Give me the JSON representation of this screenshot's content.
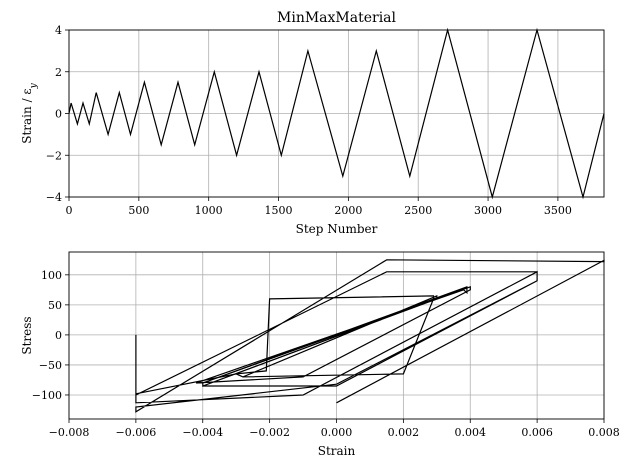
{
  "chart_data": [
    {
      "type": "line",
      "title": "MinMaxMaterial",
      "xlabel": "Step Number",
      "ylabel": "Strain / ε",
      "ylabel_sub": "y",
      "xlim": [
        0,
        3830
      ],
      "ylim": [
        -4,
        4
      ],
      "xticks": [
        0,
        500,
        1000,
        1500,
        2000,
        2500,
        3000,
        3500
      ],
      "yticks": [
        -4,
        -2,
        0,
        2,
        4
      ],
      "xtick_labels": [
        "0",
        "500",
        "1000",
        "1500",
        "2000",
        "2500",
        "3000",
        "3500"
      ],
      "ytick_labels": [
        "−4",
        "−2",
        "0",
        "2",
        "4"
      ],
      "grid": true,
      "line_color": "#000000",
      "series": [
        {
          "x": [
            0,
            15,
            60,
            100,
            145,
            195,
            280,
            360,
            440,
            540,
            660,
            780,
            900,
            1040,
            1200,
            1360,
            1520,
            1710,
            1960,
            2200,
            2440,
            2710,
            3030,
            3350,
            3680,
            3830
          ],
          "y": [
            0,
            0.5,
            -0.5,
            0.5,
            -0.5,
            1.0,
            -1.0,
            1.0,
            -1.0,
            1.5,
            -1.5,
            1.5,
            -1.5,
            2.0,
            -2.0,
            2.0,
            -2.0,
            3.0,
            -3.0,
            3.0,
            -3.0,
            4.0,
            -4.0,
            4.0,
            -4.0,
            0
          ]
        }
      ]
    },
    {
      "type": "line",
      "title": "",
      "xlabel": "Strain",
      "ylabel": "Stress",
      "xlim": [
        -0.008,
        0.008
      ],
      "ylim": [
        -140,
        138
      ],
      "xticks": [
        -0.008,
        -0.006,
        -0.004,
        -0.002,
        0.0,
        0.002,
        0.004,
        0.006,
        0.008
      ],
      "yticks": [
        -100,
        -50,
        0,
        50,
        100
      ],
      "xtick_labels": [
        "−0.008",
        "−0.006",
        "−0.004",
        "−0.002",
        "0.000",
        "0.002",
        "0.004",
        "0.006",
        "0.008"
      ],
      "ytick_labels": [
        "−100",
        "−50",
        "0",
        "50",
        "100"
      ],
      "grid": true,
      "line_color": "#000000",
      "series": [
        {
          "x": [
            -0.006,
            -0.006,
            -0.003,
            -0.0028,
            0.002,
            0.0029,
            0.0029,
            -0.002,
            -0.0021,
            -0.003,
            -0.0028,
            0.003,
            0.003,
            -0.004,
            -0.004,
            0.004,
            0.004,
            -0.001,
            -0.0042,
            0.0038,
            0.0039,
            0.0039,
            -0.004,
            -0.004,
            0.0,
            0.006,
            0.006,
            0.0015,
            -0.006,
            -0.006,
            -0.001,
            0.006,
            0.006,
            0.0,
            -0.006,
            -0.006,
            0.0015,
            0.008,
            0.008,
            0.0
          ],
          "y": [
            0,
            -98,
            -65,
            -70,
            -65,
            60,
            65,
            60,
            -60,
            -65,
            -70,
            65,
            60,
            -85,
            -80,
            80,
            75,
            -70,
            -80,
            75,
            70,
            80,
            -80,
            -85,
            -85,
            90,
            105,
            105,
            -100,
            -113,
            -100,
            105,
            90,
            -82,
            -120,
            -128,
            125,
            122,
            124,
            -113
          ]
        }
      ]
    }
  ]
}
